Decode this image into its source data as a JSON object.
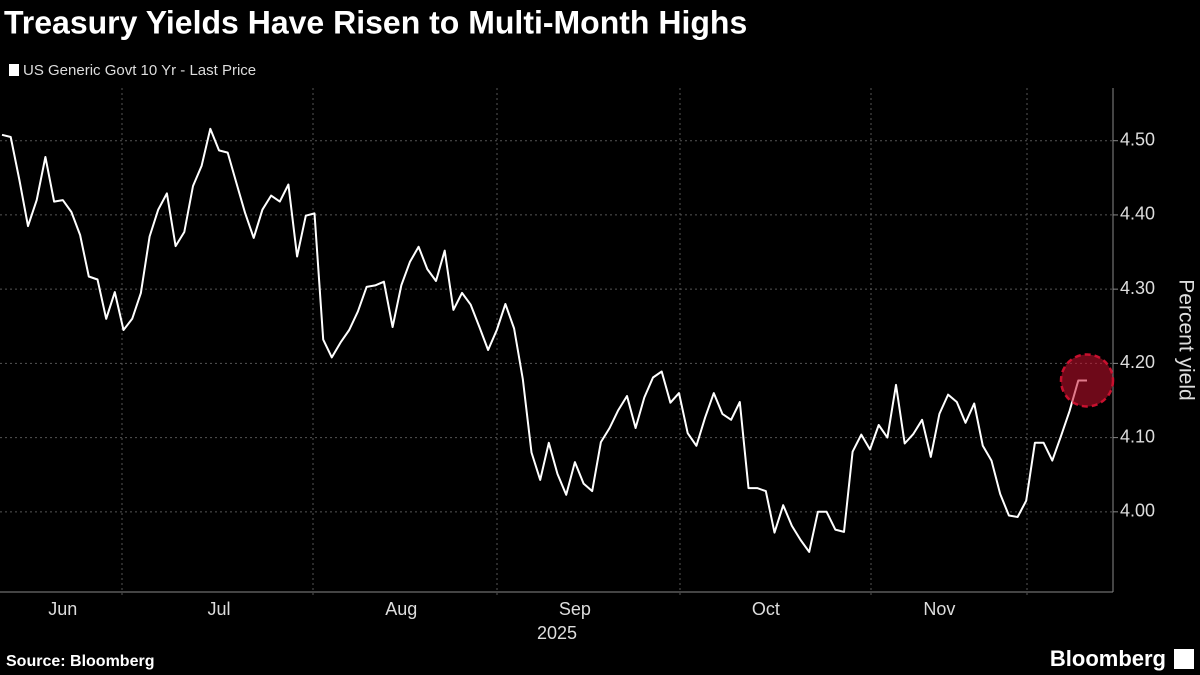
{
  "chart_data": {
    "type": "line",
    "title": "Treasury Yields Have Risen to Multi-Month Highs",
    "y_label": "Percent yield",
    "x_label": "2025",
    "source": "Source: Bloomberg",
    "brand": "Bloomberg",
    "grid": true,
    "highlight_last_point": true,
    "highlight_color": "#c8102e",
    "ylim": [
      3.892,
      4.571
    ],
    "yticks": [
      {
        "value": 4.0,
        "label": "4.00"
      },
      {
        "value": 4.1,
        "label": "4.10"
      },
      {
        "value": 4.2,
        "label": "4.20"
      },
      {
        "value": 4.3,
        "label": "4.30"
      },
      {
        "value": 4.4,
        "label": "4.40"
      },
      {
        "value": 4.5,
        "label": "4.50"
      }
    ],
    "categories": [
      null,
      null,
      null,
      null,
      null,
      null,
      null,
      "Jun",
      null,
      null,
      null,
      null,
      null,
      null,
      null,
      null,
      null,
      null,
      null,
      null,
      null,
      null,
      null,
      null,
      null,
      "Jul",
      null,
      null,
      null,
      null,
      null,
      null,
      null,
      null,
      null,
      null,
      null,
      null,
      null,
      null,
      null,
      null,
      null,
      null,
      null,
      null,
      "Aug",
      null,
      null,
      null,
      null,
      null,
      null,
      null,
      null,
      null,
      null,
      null,
      null,
      null,
      null,
      null,
      null,
      null,
      null,
      null,
      "Sep",
      null,
      null,
      null,
      null,
      null,
      null,
      null,
      null,
      null,
      null,
      null,
      null,
      null,
      null,
      null,
      null,
      null,
      null,
      null,
      null,
      null,
      "Oct",
      null,
      null,
      null,
      null,
      null,
      null,
      null,
      null,
      null,
      null,
      null,
      null,
      null,
      null,
      null,
      null,
      null,
      null,
      null,
      "Nov",
      null,
      null,
      null,
      null,
      null,
      null,
      null,
      null,
      null,
      null,
      null,
      null,
      null,
      null,
      null,
      null,
      null
    ],
    "series": [
      {
        "name": "US Generic Govt 10 Yr - Last Price",
        "color": "#ffffff",
        "values": [
          4.508,
          4.505,
          4.447,
          4.385,
          4.42,
          4.478,
          4.418,
          4.42,
          4.404,
          4.373,
          4.317,
          4.313,
          4.26,
          4.296,
          4.245,
          4.26,
          4.295,
          4.371,
          4.407,
          4.429,
          4.358,
          4.377,
          4.439,
          4.466,
          4.516,
          4.487,
          4.484,
          4.443,
          4.403,
          4.369,
          4.407,
          4.426,
          4.418,
          4.441,
          4.344,
          4.399,
          4.402,
          4.232,
          4.208,
          4.228,
          4.245,
          4.27,
          4.303,
          4.305,
          4.31,
          4.249,
          4.305,
          4.337,
          4.357,
          4.327,
          4.311,
          4.352,
          4.272,
          4.295,
          4.279,
          4.249,
          4.218,
          4.245,
          4.28,
          4.247,
          4.179,
          4.08,
          4.043,
          4.093,
          4.051,
          4.023,
          4.067,
          4.038,
          4.028,
          4.094,
          4.113,
          4.137,
          4.156,
          4.113,
          4.154,
          4.181,
          4.189,
          4.147,
          4.16,
          4.106,
          4.089,
          4.127,
          4.16,
          4.132,
          4.124,
          4.148,
          4.032,
          4.032,
          4.028,
          3.972,
          4.009,
          3.981,
          3.962,
          3.946,
          4.0,
          4.0,
          3.976,
          3.973,
          4.081,
          4.104,
          4.084,
          4.117,
          4.1,
          4.171,
          4.092,
          4.105,
          4.124,
          4.074,
          4.132,
          4.158,
          4.148,
          4.12,
          4.146,
          4.089,
          4.069,
          4.024,
          3.995,
          3.993,
          4.015,
          4.093,
          4.093,
          4.069,
          4.102,
          4.136,
          4.177,
          4.177
        ]
      }
    ]
  }
}
